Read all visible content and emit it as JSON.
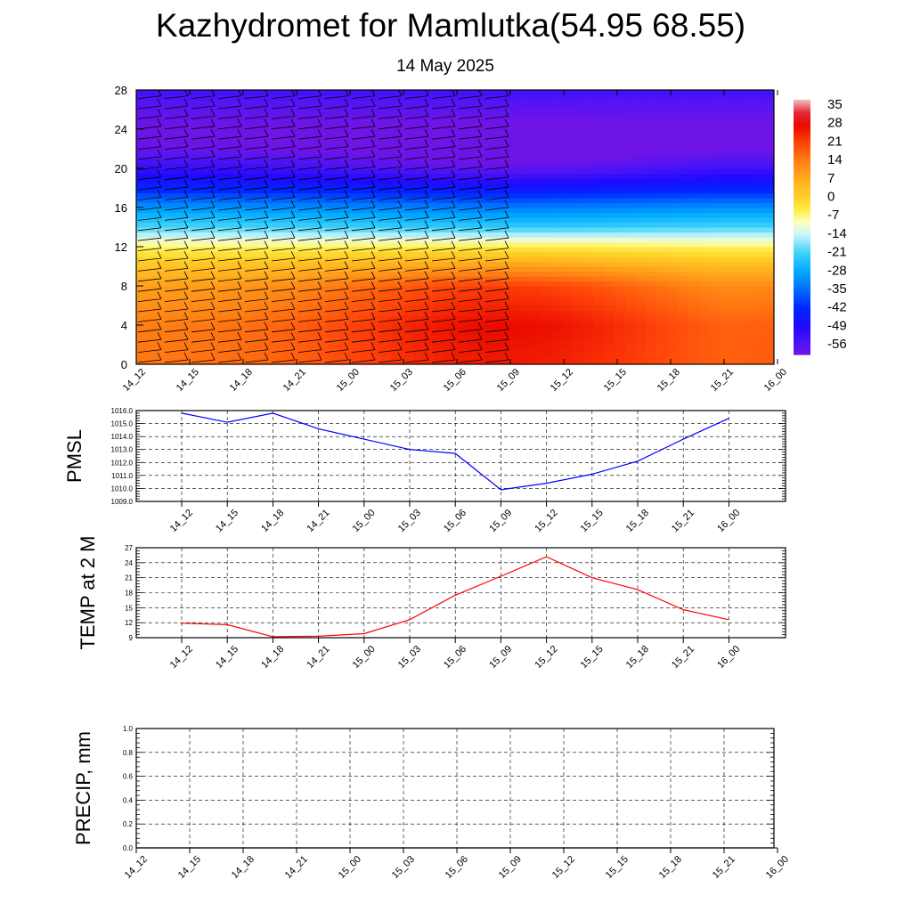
{
  "header": {
    "title": "Kazhydromet for Mamlutka(54.95 68.55)",
    "subtitle": "14 May 2025"
  },
  "time_labels": [
    "14_12",
    "14_15",
    "14_18",
    "14_21",
    "15_00",
    "15_03",
    "15_06",
    "15_09",
    "15_12",
    "15_15",
    "15_18",
    "15_21",
    "16_00"
  ],
  "colors": {
    "axis": "#000000",
    "pmsl_line": "#0000ff",
    "temp_line": "#ff0000",
    "precip_line": "#006400",
    "grid": "#000000"
  },
  "chart_data": [
    {
      "id": "upper_air",
      "type": "heatmap",
      "ylabel": "",
      "ylim": [
        0,
        28
      ],
      "yticks": [
        "0",
        "4",
        "8",
        "12",
        "16",
        "20",
        "24",
        "28"
      ],
      "x": [
        "14_12",
        "14_15",
        "14_18",
        "14_21",
        "15_00",
        "15_03",
        "15_06",
        "15_09",
        "15_12",
        "15_15",
        "15_18",
        "15_21",
        "16_00"
      ],
      "value_profile": {
        "levels": [
          0,
          4,
          8,
          10,
          12,
          13,
          14,
          16,
          18,
          20,
          22,
          24,
          26,
          28
        ],
        "values_start": [
          15,
          14,
          9,
          3,
          -6,
          -13,
          -20,
          -30,
          -43,
          -52,
          -59,
          -60,
          -58,
          -54
        ],
        "values_mid": [
          26,
          28,
          22,
          10,
          -4,
          -13,
          -22,
          -33,
          -46,
          -58,
          -63,
          -62,
          -58,
          -54
        ]
      },
      "colorbar": {
        "labels": [
          "35",
          "28",
          "21",
          "14",
          "7",
          "0",
          "-7",
          "-14",
          "-21",
          "-28",
          "-35",
          "-42",
          "-49",
          "-56"
        ],
        "min": -60,
        "max": 38
      },
      "grid": false,
      "wind_barbs": true
    },
    {
      "id": "pmsl",
      "type": "line",
      "ylabel": "PMSL",
      "ylim": [
        1009.0,
        1016.0
      ],
      "yticks": [
        "1009.0",
        "1010.0",
        "1011.0",
        "1012.0",
        "1013.0",
        "1014.0",
        "1015.0",
        "1016.0"
      ],
      "x": [
        "14_12",
        "14_15",
        "14_18",
        "14_21",
        "15_00",
        "15_03",
        "15_06",
        "15_09",
        "15_12",
        "15_15",
        "15_18",
        "15_21",
        "16_00"
      ],
      "series": [
        {
          "values": [
            1015.8,
            1015.1,
            1015.8,
            1014.6,
            1013.8,
            1013.0,
            1012.7,
            1009.9,
            1010.4,
            1011.1,
            1012.1,
            1013.8,
            1015.4
          ]
        }
      ],
      "grid": true
    },
    {
      "id": "temp2m",
      "type": "line",
      "ylabel": "TEMP at 2 M",
      "ylim": [
        9,
        27
      ],
      "yticks": [
        "9",
        "12",
        "15",
        "18",
        "21",
        "24",
        "27"
      ],
      "x": [
        "14_12",
        "14_15",
        "14_18",
        "14_21",
        "15_00",
        "15_03",
        "15_06",
        "15_09",
        "15_12",
        "15_15",
        "15_18",
        "15_21",
        "16_00"
      ],
      "series": [
        {
          "values": [
            11.9,
            11.6,
            9.2,
            9.3,
            9.8,
            12.6,
            17.5,
            21.3,
            25.2,
            21.0,
            18.6,
            14.6,
            12.6
          ]
        }
      ],
      "grid": true
    },
    {
      "id": "precip",
      "type": "line",
      "ylabel": "PRECIP, mm",
      "ylim": [
        0.0,
        1.0
      ],
      "yticks": [
        "0.0",
        "0.2",
        "0.4",
        "0.6",
        "0.8",
        "1.0"
      ],
      "x": [
        "14_12",
        "14_15",
        "14_18",
        "14_21",
        "15_00",
        "15_03",
        "15_06",
        "15_09",
        "15_12",
        "15_15",
        "15_18",
        "15_21",
        "16_00"
      ],
      "series": [
        {
          "values": [
            0,
            0,
            0,
            0,
            0,
            0,
            0,
            0,
            0,
            0,
            0,
            0,
            0
          ]
        }
      ],
      "grid": true
    }
  ]
}
